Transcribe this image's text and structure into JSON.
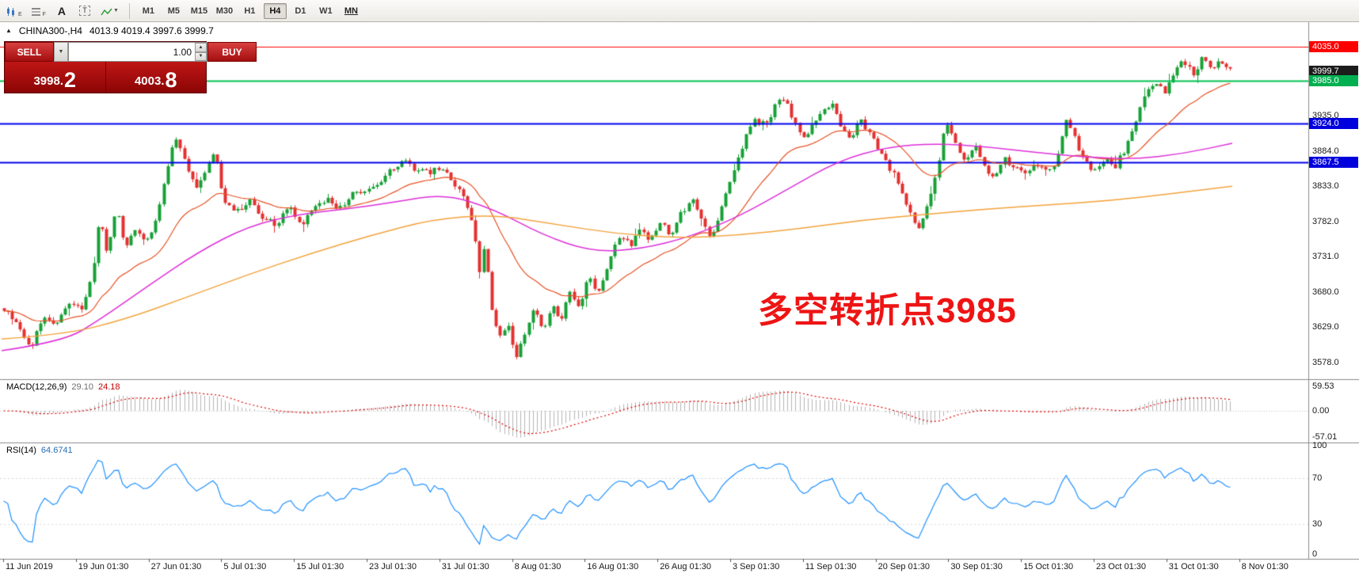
{
  "toolbar": {
    "icon_buttons": [
      {
        "name": "chart-type",
        "badge": "E"
      },
      {
        "name": "grid",
        "badge": "F"
      },
      {
        "name": "text-tool",
        "badge": "A"
      },
      {
        "name": "template",
        "badge": "T"
      },
      {
        "name": "indicators",
        "badge": ""
      }
    ],
    "timeframes": [
      "M1",
      "M5",
      "M15",
      "M30",
      "H1",
      "H4",
      "D1",
      "W1",
      "MN"
    ],
    "active_timeframe": "H4"
  },
  "chart_header": {
    "symbol": "CHINA300-,H4",
    "ohlc": "4013.9 4019.4 3997.6 3999.7"
  },
  "trade_panel": {
    "sell_label": "SELL",
    "buy_label": "BUY",
    "volume": "1.00",
    "sell_price": "3998.2",
    "buy_price": "4003.8",
    "sell_price_main": "3998.",
    "sell_price_pip": "2",
    "buy_price_main": "4003.",
    "buy_price_pip": "8"
  },
  "annotation": {
    "text": "多空转折点3985",
    "color": "#ee1414"
  },
  "macd_panel": {
    "label": "MACD(12,26,9)",
    "value_main": "29.10",
    "value_signal": "24.18",
    "levels": [
      "59.53",
      "0.00",
      "-57.01"
    ],
    "level_values": [
      59.53,
      0,
      -57.01
    ]
  },
  "rsi_panel": {
    "label": "RSI(14)",
    "value": "64.6741",
    "levels": [
      "100",
      "70",
      "30",
      "0"
    ],
    "level_values": [
      100,
      70,
      30,
      0
    ]
  },
  "chart_data": {
    "type": "candlestick",
    "symbol": "CHINA300-",
    "timeframe": "H4",
    "ohlc_current": {
      "open": 4013.9,
      "high": 4019.4,
      "low": 3997.6,
      "close": 3999.7
    },
    "current_price": 3999.7,
    "price_range": [
      3555,
      4068
    ],
    "candle_count": 300,
    "colors": {
      "up": "#17a036",
      "down": "#e43030"
    },
    "y_axis_ticks": [
      3935.0,
      3884.0,
      3833.0,
      3782.0,
      3731.0,
      3680.0,
      3629.0,
      3578.0
    ],
    "price_tags": [
      {
        "label": "4035.0",
        "price": 4035.0,
        "bg": "#ff0000"
      },
      {
        "label": "3999.7",
        "price": 3999.7,
        "bg": "#1c1c1c"
      },
      {
        "label": "3985.0",
        "price": 3985.0,
        "bg": "#00b050"
      },
      {
        "label": "3924.0",
        "price": 3924.0,
        "bg": "#0000dd"
      },
      {
        "label": "3867.5",
        "price": 3867.5,
        "bg": "#0000dd"
      }
    ],
    "horizontal_lines": [
      {
        "price": 4035.0,
        "color": "#ff0000",
        "width": 1.2
      },
      {
        "price": 3985.0,
        "color": "#00c050",
        "width": 2
      },
      {
        "price": 3924.0,
        "color": "#0000ee",
        "width": 2
      },
      {
        "price": 3867.5,
        "color": "#0000ee",
        "width": 2
      }
    ],
    "x_labels": [
      "11 Jun 2019",
      "19 Jun 01:30",
      "27 Jun 01:30",
      "5 Jul 01:30",
      "15 Jul 01:30",
      "23 Jul 01:30",
      "31 Jul 01:30",
      "8 Aug 01:30",
      "16 Aug 01:30",
      "26 Aug 01:30",
      "3 Sep 01:30",
      "11 Sep 01:30",
      "20 Sep 01:30",
      "30 Sep 01:30",
      "15 Oct 01:30",
      "23 Oct 01:30",
      "31 Oct 01:30",
      "8 Nov 01:30"
    ],
    "close_path": [
      [
        0.0,
        3655
      ],
      [
        0.013,
        3628
      ],
      [
        0.023,
        3600
      ],
      [
        0.032,
        3648
      ],
      [
        0.042,
        3635
      ],
      [
        0.053,
        3660
      ],
      [
        0.063,
        3655
      ],
      [
        0.072,
        3700
      ],
      [
        0.078,
        3795
      ],
      [
        0.084,
        3740
      ],
      [
        0.092,
        3798
      ],
      [
        0.099,
        3745
      ],
      [
        0.108,
        3772
      ],
      [
        0.118,
        3752
      ],
      [
        0.126,
        3800
      ],
      [
        0.134,
        3868
      ],
      [
        0.14,
        3905
      ],
      [
        0.149,
        3862
      ],
      [
        0.157,
        3832
      ],
      [
        0.165,
        3858
      ],
      [
        0.172,
        3885
      ],
      [
        0.179,
        3815
      ],
      [
        0.19,
        3795
      ],
      [
        0.2,
        3812
      ],
      [
        0.211,
        3788
      ],
      [
        0.223,
        3782
      ],
      [
        0.234,
        3802
      ],
      [
        0.242,
        3772
      ],
      [
        0.253,
        3802
      ],
      [
        0.264,
        3818
      ],
      [
        0.274,
        3800
      ],
      [
        0.285,
        3828
      ],
      [
        0.295,
        3822
      ],
      [
        0.306,
        3840
      ],
      [
        0.316,
        3858
      ],
      [
        0.325,
        3872
      ],
      [
        0.335,
        3858
      ],
      [
        0.346,
        3852
      ],
      [
        0.356,
        3862
      ],
      [
        0.367,
        3838
      ],
      [
        0.375,
        3818
      ],
      [
        0.383,
        3775
      ],
      [
        0.388,
        3712
      ],
      [
        0.392,
        3745
      ],
      [
        0.398,
        3655
      ],
      [
        0.405,
        3612
      ],
      [
        0.411,
        3635
      ],
      [
        0.418,
        3582
      ],
      [
        0.425,
        3622
      ],
      [
        0.432,
        3652
      ],
      [
        0.44,
        3628
      ],
      [
        0.447,
        3662
      ],
      [
        0.454,
        3640
      ],
      [
        0.462,
        3680
      ],
      [
        0.469,
        3652
      ],
      [
        0.476,
        3700
      ],
      [
        0.485,
        3682
      ],
      [
        0.493,
        3722
      ],
      [
        0.502,
        3762
      ],
      [
        0.51,
        3748
      ],
      [
        0.519,
        3772
      ],
      [
        0.527,
        3756
      ],
      [
        0.535,
        3782
      ],
      [
        0.544,
        3762
      ],
      [
        0.552,
        3792
      ],
      [
        0.561,
        3812
      ],
      [
        0.569,
        3782
      ],
      [
        0.577,
        3752
      ],
      [
        0.584,
        3800
      ],
      [
        0.59,
        3832
      ],
      [
        0.598,
        3872
      ],
      [
        0.605,
        3905
      ],
      [
        0.612,
        3932
      ],
      [
        0.62,
        3916
      ],
      [
        0.627,
        3946
      ],
      [
        0.635,
        3958
      ],
      [
        0.643,
        3932
      ],
      [
        0.651,
        3902
      ],
      [
        0.66,
        3922
      ],
      [
        0.668,
        3944
      ],
      [
        0.676,
        3952
      ],
      [
        0.683,
        3920
      ],
      [
        0.69,
        3898
      ],
      [
        0.698,
        3930
      ],
      [
        0.706,
        3908
      ],
      [
        0.715,
        3878
      ],
      [
        0.723,
        3856
      ],
      [
        0.731,
        3828
      ],
      [
        0.739,
        3798
      ],
      [
        0.746,
        3768
      ],
      [
        0.754,
        3812
      ],
      [
        0.761,
        3855
      ],
      [
        0.768,
        3928
      ],
      [
        0.776,
        3898
      ],
      [
        0.783,
        3868
      ],
      [
        0.792,
        3892
      ],
      [
        0.8,
        3862
      ],
      [
        0.807,
        3842
      ],
      [
        0.816,
        3872
      ],
      [
        0.824,
        3862
      ],
      [
        0.833,
        3855
      ],
      [
        0.841,
        3868
      ],
      [
        0.85,
        3858
      ],
      [
        0.858,
        3868
      ],
      [
        0.866,
        3932
      ],
      [
        0.874,
        3898
      ],
      [
        0.882,
        3866
      ],
      [
        0.89,
        3856
      ],
      [
        0.898,
        3872
      ],
      [
        0.906,
        3862
      ],
      [
        0.912,
        3880
      ],
      [
        0.918,
        3905
      ],
      [
        0.928,
        3955
      ],
      [
        0.938,
        3985
      ],
      [
        0.946,
        3968
      ],
      [
        0.954,
        3995
      ],
      [
        0.962,
        4015
      ],
      [
        0.97,
        3992
      ],
      [
        0.978,
        4028
      ],
      [
        0.984,
        3998
      ],
      [
        0.99,
        4012
      ],
      [
        1.0,
        4000
      ]
    ],
    "moving_averages": [
      {
        "kind": "ema",
        "period": 25,
        "color": "#e65224",
        "label": "fast-ma"
      },
      {
        "kind": "path",
        "color": "#dd2fd8",
        "label": "mid-ma",
        "path": [
          [
            0,
            3595
          ],
          [
            0.05,
            3608
          ],
          [
            0.08,
            3640
          ],
          [
            0.12,
            3690
          ],
          [
            0.16,
            3738
          ],
          [
            0.2,
            3775
          ],
          [
            0.24,
            3792
          ],
          [
            0.28,
            3800
          ],
          [
            0.32,
            3810
          ],
          [
            0.36,
            3822
          ],
          [
            0.4,
            3800
          ],
          [
            0.44,
            3762
          ],
          [
            0.48,
            3738
          ],
          [
            0.52,
            3742
          ],
          [
            0.56,
            3760
          ],
          [
            0.6,
            3790
          ],
          [
            0.64,
            3830
          ],
          [
            0.68,
            3870
          ],
          [
            0.72,
            3890
          ],
          [
            0.76,
            3895
          ],
          [
            0.8,
            3890
          ],
          [
            0.84,
            3882
          ],
          [
            0.88,
            3875
          ],
          [
            0.92,
            3872
          ],
          [
            0.96,
            3880
          ],
          [
            1,
            3895
          ]
        ]
      },
      {
        "kind": "path",
        "color": "#f2a33c",
        "label": "slow-ma",
        "path": [
          [
            0,
            3612
          ],
          [
            0.05,
            3618
          ],
          [
            0.1,
            3640
          ],
          [
            0.15,
            3672
          ],
          [
            0.2,
            3705
          ],
          [
            0.25,
            3735
          ],
          [
            0.3,
            3762
          ],
          [
            0.35,
            3785
          ],
          [
            0.4,
            3792
          ],
          [
            0.45,
            3778
          ],
          [
            0.5,
            3764
          ],
          [
            0.55,
            3758
          ],
          [
            0.6,
            3762
          ],
          [
            0.65,
            3772
          ],
          [
            0.7,
            3784
          ],
          [
            0.75,
            3792
          ],
          [
            0.8,
            3800
          ],
          [
            0.85,
            3806
          ],
          [
            0.9,
            3812
          ],
          [
            0.95,
            3822
          ],
          [
            1,
            3833
          ]
        ]
      }
    ],
    "indicators": [
      {
        "name": "MACD",
        "params": [
          12,
          26,
          9
        ],
        "current": [
          29.1,
          24.18
        ],
        "scale_labels": [
          59.53,
          0,
          -57.01
        ]
      },
      {
        "name": "RSI",
        "params": [
          14
        ],
        "current": 64.6741,
        "scale_labels": [
          100,
          70,
          30,
          0
        ]
      }
    ]
  }
}
